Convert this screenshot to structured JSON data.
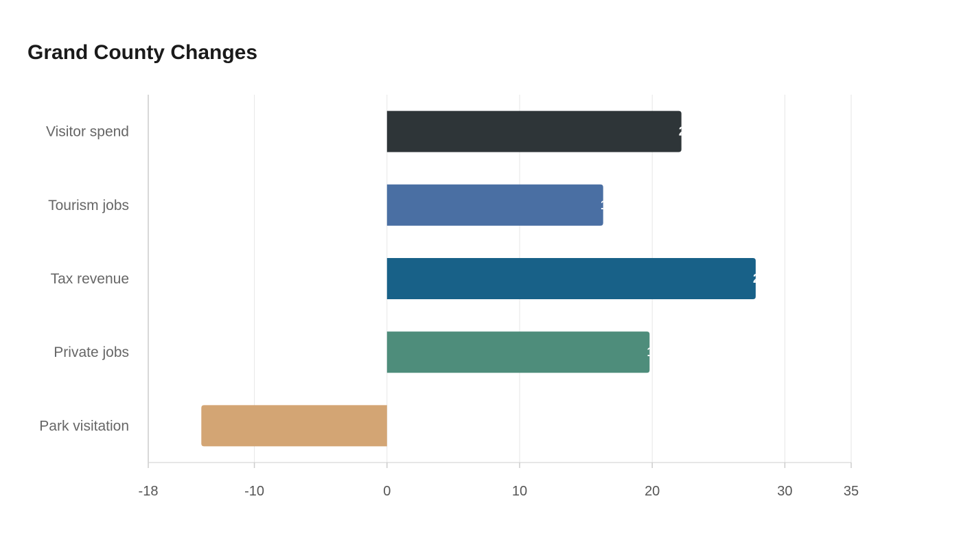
{
  "chart_data": {
    "type": "bar",
    "orientation": "horizontal",
    "title": "Grand County Changes",
    "xlabel": "",
    "ylabel": "",
    "categories": [
      "Visitor spend",
      "Tourism jobs",
      "Tax revenue",
      "Private jobs",
      "Park visitation"
    ],
    "values": [
      22.2,
      16.3,
      27.8,
      19.8,
      -14.0
    ],
    "colors": [
      "#2e3538",
      "#4a6fa3",
      "#186188",
      "#4e8d7b",
      "#d3a574"
    ],
    "xlim": [
      -18,
      35
    ],
    "xticks": [
      -18,
      -10,
      0,
      10,
      20,
      30,
      35
    ],
    "grid": true,
    "legend": "none"
  }
}
